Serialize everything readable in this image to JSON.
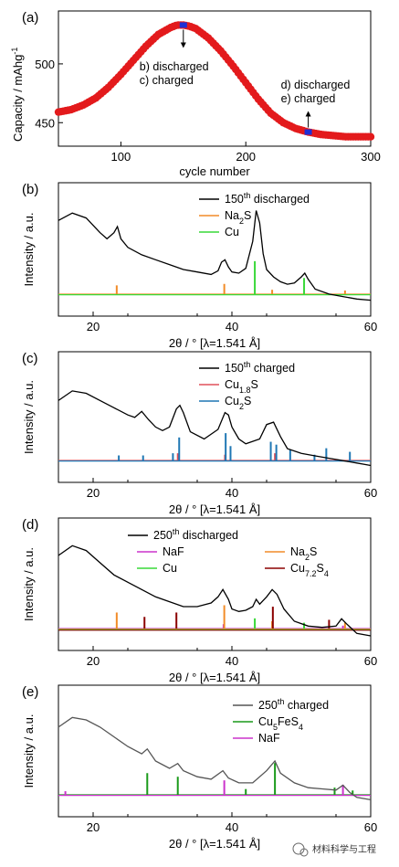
{
  "chart_data": [
    {
      "panel": "(a)",
      "type": "scatter",
      "xlabel": "cycle number",
      "ylabel": "Capacity / mAhg",
      "ylabel_sup": "-1",
      "xlim": [
        50,
        300
      ],
      "ylim": [
        430,
        545
      ],
      "xticks": [
        100,
        200,
        300
      ],
      "yticks": [
        450,
        500
      ],
      "marker_color": "#e31a1c",
      "highlight_color": "#1f2fd6",
      "series": [
        {
          "x": [
            50,
            60,
            70,
            80,
            90,
            100,
            110,
            120,
            130,
            140,
            145,
            150,
            155,
            160,
            170,
            180,
            190,
            200,
            210,
            220,
            230,
            240,
            250,
            260,
            270,
            280,
            290,
            300
          ],
          "y": [
            459,
            461,
            465,
            471,
            480,
            491,
            503,
            515,
            525,
            531,
            533,
            533,
            532,
            530,
            522,
            511,
            498,
            484,
            470,
            458,
            450,
            445,
            442,
            440,
            439,
            438,
            438,
            438
          ]
        }
      ],
      "highlights": [
        {
          "x": 150,
          "y": 533
        },
        {
          "x": 250,
          "y": 442
        }
      ],
      "annotations": [
        {
          "lines": [
            "b) discharged",
            "c) charged"
          ],
          "x": 150,
          "y": 533
        },
        {
          "lines": [
            "d) discharged",
            "e) charged"
          ],
          "x": 250,
          "y": 442
        }
      ]
    },
    {
      "panel": "(b)",
      "type": "line",
      "xlabel": "2θ / ° [λ=1.541 Å]",
      "ylabel": "Intensity / a.u.",
      "xlim": [
        15,
        60
      ],
      "xticks": [
        20,
        40,
        60
      ],
      "pattern": {
        "name": "150th discharged",
        "color": "#000000",
        "x": [
          15,
          17,
          19,
          21,
          22,
          23,
          23.5,
          24,
          25,
          27,
          29,
          31,
          33,
          35,
          37,
          38,
          38.5,
          39,
          39.5,
          40,
          41,
          42,
          43,
          43.5,
          44,
          44.5,
          45,
          46,
          47,
          48,
          49,
          50,
          50.5,
          51,
          52,
          54,
          56,
          58,
          60
        ],
        "y": [
          0.72,
          0.78,
          0.74,
          0.62,
          0.57,
          0.62,
          0.67,
          0.57,
          0.5,
          0.44,
          0.4,
          0.36,
          0.32,
          0.3,
          0.28,
          0.31,
          0.38,
          0.4,
          0.34,
          0.3,
          0.29,
          0.33,
          0.55,
          0.8,
          0.7,
          0.45,
          0.32,
          0.26,
          0.22,
          0.2,
          0.21,
          0.26,
          0.29,
          0.24,
          0.16,
          0.12,
          0.1,
          0.08,
          0.07
        ]
      },
      "references": [
        {
          "name": "Na",
          "sub": "2",
          "post": "S",
          "color": "#f28c28",
          "peaks": [
            {
              "x": 23.4,
              "h": 0.12
            },
            {
              "x": 38.9,
              "h": 0.14
            },
            {
              "x": 45.8,
              "h": 0.06
            },
            {
              "x": 56.3,
              "h": 0.05
            }
          ]
        },
        {
          "name": "Cu",
          "sub": "",
          "post": "",
          "color": "#39d839",
          "peaks": [
            {
              "x": 43.3,
              "h": 0.45
            },
            {
              "x": 50.4,
              "h": 0.22
            }
          ]
        }
      ]
    },
    {
      "panel": "(c)",
      "type": "line",
      "xlabel": "2θ / ° [λ=1.541 Å]",
      "ylabel": "Intensity / a.u.",
      "xlim": [
        15,
        60
      ],
      "xticks": [
        20,
        40,
        60
      ],
      "pattern": {
        "name": "150th charged",
        "color": "#000000",
        "x": [
          15,
          17,
          19,
          21,
          23,
          25,
          26,
          27,
          28,
          29,
          30,
          31,
          32,
          32.5,
          33,
          34,
          36,
          38,
          39,
          39.5,
          40,
          41,
          42,
          44,
          45,
          46,
          47,
          48,
          50,
          52,
          54,
          56,
          58,
          60
        ],
        "y": [
          0.62,
          0.7,
          0.68,
          0.62,
          0.56,
          0.5,
          0.48,
          0.53,
          0.46,
          0.4,
          0.37,
          0.4,
          0.55,
          0.58,
          0.52,
          0.36,
          0.3,
          0.38,
          0.52,
          0.5,
          0.4,
          0.3,
          0.26,
          0.3,
          0.42,
          0.44,
          0.32,
          0.22,
          0.18,
          0.16,
          0.14,
          0.12,
          0.1,
          0.08
        ]
      },
      "references": [
        {
          "name": "Cu",
          "sub": "1.8",
          "post": "S",
          "color": "#e0505a",
          "peaks": [
            {
              "x": 32.2,
              "h": 0.1
            },
            {
              "x": 39.0,
              "h": 0.08
            },
            {
              "x": 46.2,
              "h": 0.1
            }
          ]
        },
        {
          "name": "Cu",
          "sub": "2",
          "post": "S",
          "color": "#1f77b4",
          "peaks": [
            {
              "x": 23.7,
              "h": 0.07
            },
            {
              "x": 27.2,
              "h": 0.07
            },
            {
              "x": 31.5,
              "h": 0.1
            },
            {
              "x": 32.4,
              "h": 0.32
            },
            {
              "x": 39.1,
              "h": 0.38
            },
            {
              "x": 39.8,
              "h": 0.2
            },
            {
              "x": 45.6,
              "h": 0.26
            },
            {
              "x": 46.4,
              "h": 0.22
            },
            {
              "x": 48.4,
              "h": 0.15
            },
            {
              "x": 51.9,
              "h": 0.08
            },
            {
              "x": 53.6,
              "h": 0.17
            },
            {
              "x": 57.0,
              "h": 0.12
            }
          ]
        }
      ]
    },
    {
      "panel": "(d)",
      "type": "line",
      "xlabel": "2θ / ° [λ=1.541 Å]",
      "ylabel": "Intensity / a.u.",
      "xlim": [
        15,
        60
      ],
      "xticks": [
        20,
        40,
        60
      ],
      "pattern": {
        "name": "250th discharged",
        "color": "#000000",
        "x": [
          15,
          17,
          19,
          21,
          23,
          25,
          27,
          29,
          31,
          33,
          35,
          37,
          38,
          38.7,
          39.5,
          40,
          41,
          42,
          43,
          43.5,
          44,
          45,
          45.8,
          46.5,
          47.5,
          49,
          51,
          53,
          55,
          55.8,
          56.5,
          58,
          60
        ],
        "y": [
          0.72,
          0.8,
          0.76,
          0.66,
          0.56,
          0.5,
          0.44,
          0.38,
          0.34,
          0.3,
          0.3,
          0.33,
          0.38,
          0.44,
          0.36,
          0.28,
          0.26,
          0.27,
          0.3,
          0.36,
          0.32,
          0.38,
          0.44,
          0.4,
          0.28,
          0.18,
          0.14,
          0.13,
          0.14,
          0.2,
          0.16,
          0.08,
          0.06
        ]
      },
      "references": [
        {
          "name": "NaF",
          "sub": "",
          "post": "",
          "color": "#cc33cc",
          "peaks": [
            {
              "x": 38.8,
              "h": 0.06
            },
            {
              "x": 56.0,
              "h": 0.04
            }
          ]
        },
        {
          "name": "Na",
          "sub": "2",
          "post": "S",
          "color": "#f28c28",
          "peaks": [
            {
              "x": 23.4,
              "h": 0.22
            },
            {
              "x": 38.9,
              "h": 0.32
            },
            {
              "x": 45.8,
              "h": 0.1
            },
            {
              "x": 56.3,
              "h": 0.08
            }
          ]
        },
        {
          "name": "Cu",
          "sub": "",
          "post": "",
          "color": "#39d839",
          "peaks": [
            {
              "x": 43.3,
              "h": 0.14
            },
            {
              "x": 50.4,
              "h": 0.08
            }
          ]
        },
        {
          "name": "Cu",
          "sub": "7.2",
          "post": "S",
          "sub2": "4",
          "color": "#8b0000",
          "peaks": [
            {
              "x": 27.4,
              "h": 0.16
            },
            {
              "x": 32.0,
              "h": 0.22
            },
            {
              "x": 45.9,
              "h": 0.3
            },
            {
              "x": 54.0,
              "h": 0.12
            }
          ]
        }
      ]
    },
    {
      "panel": "(e)",
      "type": "line",
      "xlabel": "2θ / ° [λ=1.541 Å]",
      "ylabel": "Intensity / a.u.",
      "xlim": [
        15,
        60
      ],
      "xticks": [
        20,
        40,
        60
      ],
      "pattern": {
        "name": "250th charged",
        "color": "#555555",
        "x": [
          15,
          17,
          19,
          21,
          23,
          25,
          27,
          27.8,
          29,
          31,
          32.2,
          33,
          35,
          37,
          38.7,
          39.5,
          41,
          43,
          45,
          46.2,
          47,
          49,
          51,
          53,
          55,
          56,
          57,
          58,
          60
        ],
        "y": [
          0.68,
          0.76,
          0.74,
          0.68,
          0.6,
          0.52,
          0.46,
          0.5,
          0.4,
          0.34,
          0.38,
          0.32,
          0.27,
          0.25,
          0.32,
          0.26,
          0.22,
          0.22,
          0.32,
          0.4,
          0.3,
          0.22,
          0.18,
          0.17,
          0.16,
          0.2,
          0.14,
          0.1,
          0.08
        ]
      },
      "references": [
        {
          "name": "Cu",
          "sub": "5",
          "post": "FeS",
          "sub2": "4",
          "color": "#1a9a1a",
          "peaks": [
            {
              "x": 27.8,
              "h": 0.3
            },
            {
              "x": 32.2,
              "h": 0.25
            },
            {
              "x": 42.0,
              "h": 0.08
            },
            {
              "x": 46.2,
              "h": 0.44
            },
            {
              "x": 54.8,
              "h": 0.1
            },
            {
              "x": 57.4,
              "h": 0.06
            }
          ]
        },
        {
          "name": "NaF",
          "sub": "",
          "post": "",
          "color": "#cc33cc",
          "peaks": [
            {
              "x": 16.0,
              "h": 0.05
            },
            {
              "x": 38.9,
              "h": 0.2
            },
            {
              "x": 56.0,
              "h": 0.14
            }
          ]
        }
      ]
    }
  ],
  "watermark": "材料科学与工程"
}
